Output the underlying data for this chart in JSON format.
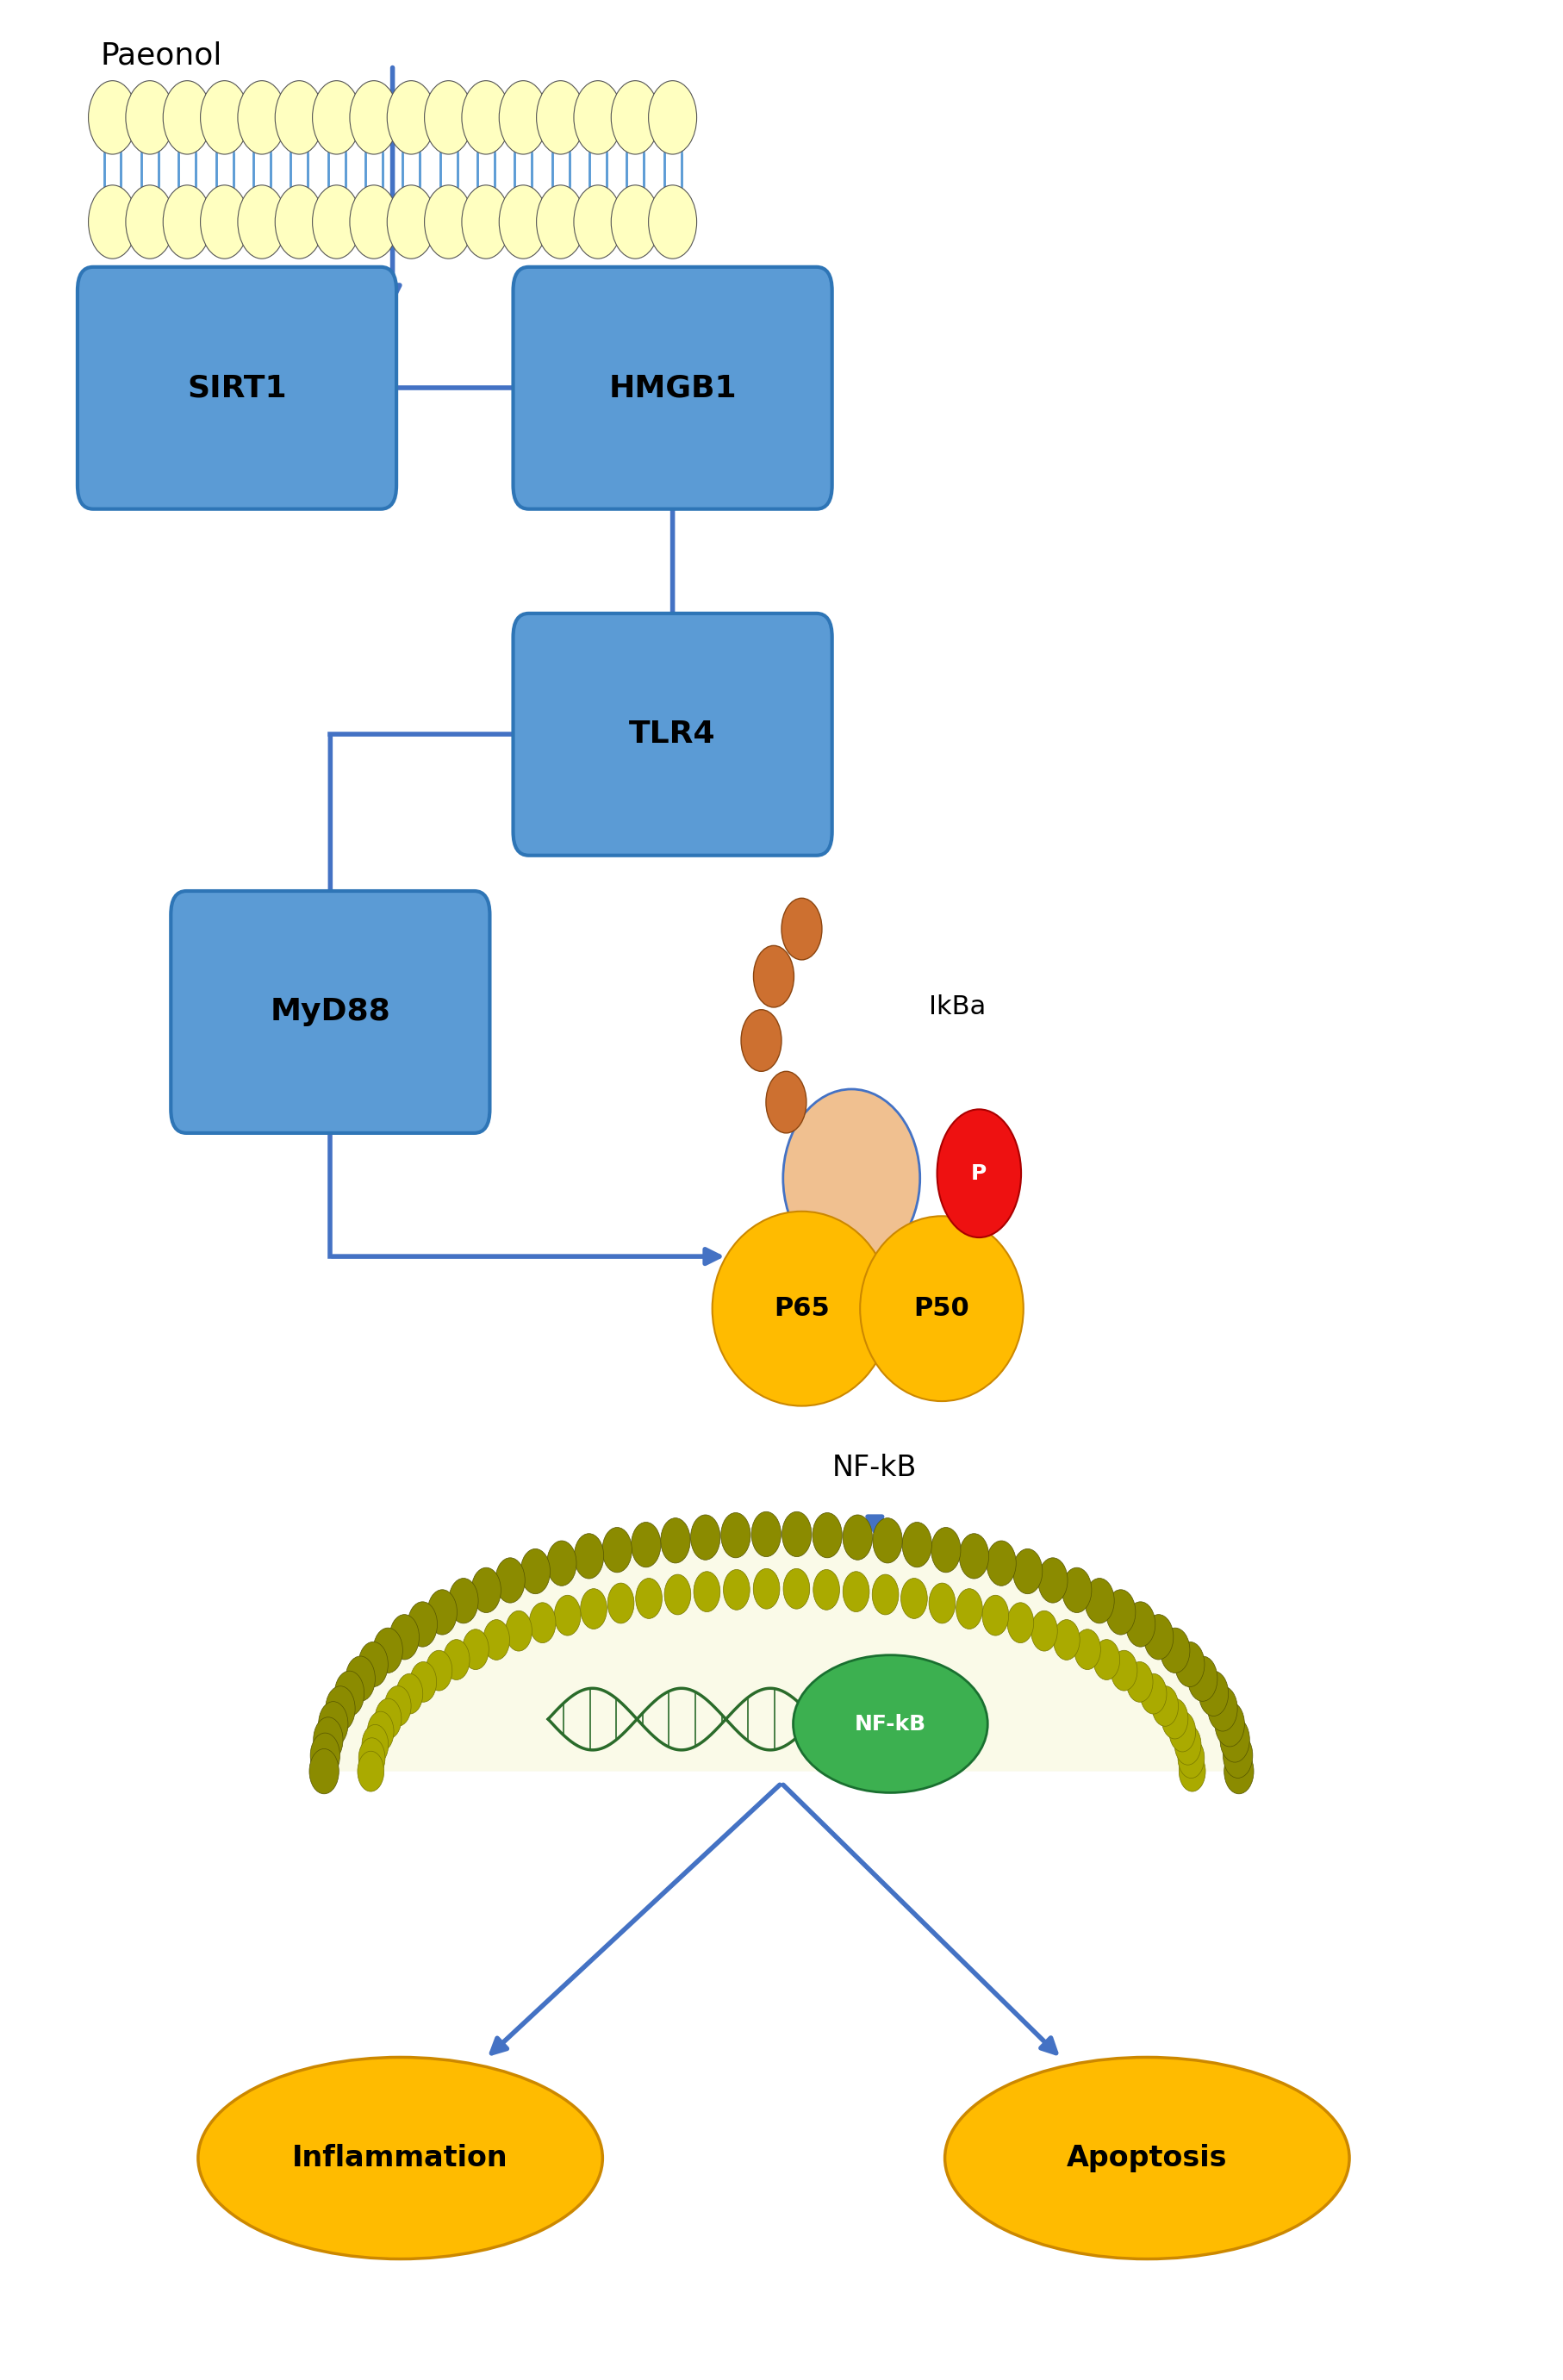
{
  "fig_width": 18.14,
  "fig_height": 27.62,
  "bg_color": "#ffffff",
  "arrow_color": "#4472C4",
  "box_color": "#5B9BD5",
  "box_edge_color": "#2E75B6",
  "box_text_color": "#000000",
  "paeonol_label": "Paeonol",
  "sirt1_label": "SIRT1",
  "hmgb1_label": "HMGB1",
  "tlr4_label": "TLR4",
  "myd88_label": "MyD88",
  "nfkb_label": "NF-kB",
  "ikba_label": "IkBa",
  "p65_label": "P65",
  "p50_label": "P50",
  "p_label": "P",
  "inflammation_label": "Inflammation",
  "apoptosis_label": "Apoptosis",
  "nfkb_nucleus_label": "NF-kB"
}
